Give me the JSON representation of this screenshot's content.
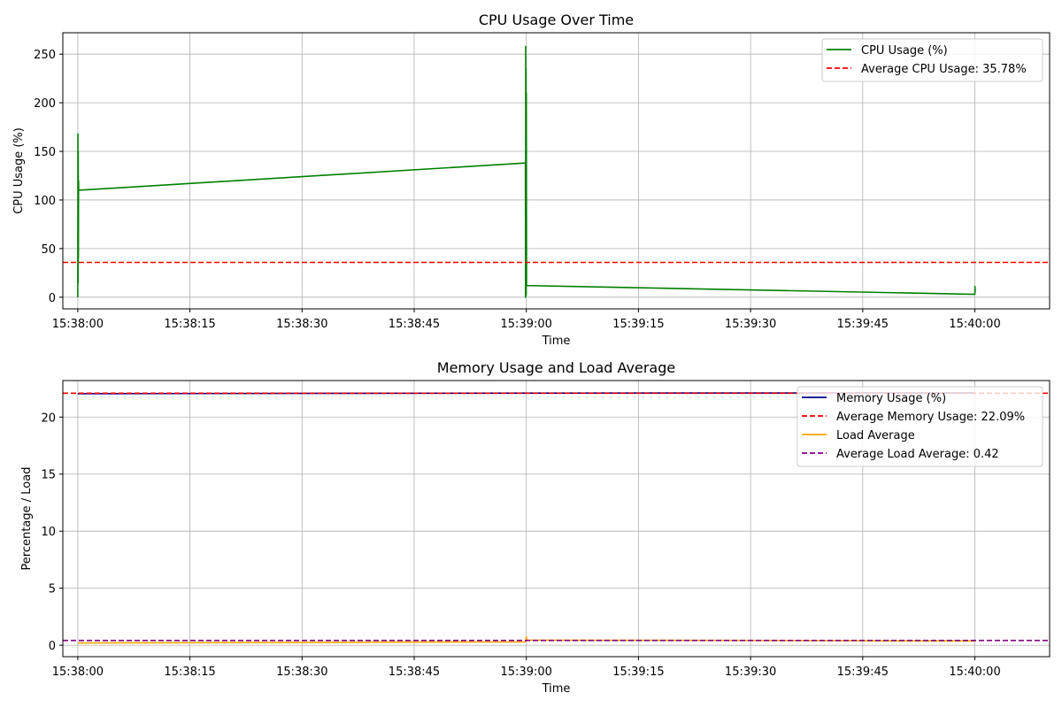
{
  "chart_data": [
    {
      "type": "line",
      "title": "CPU Usage Over Time",
      "xlabel": "Time",
      "ylabel": "CPU Usage (%)",
      "xlim": [
        "15:37:58",
        "15:40:10"
      ],
      "ylim": [
        -12,
        272
      ],
      "x_ticks": [
        "15:38:00",
        "15:38:15",
        "15:38:30",
        "15:38:45",
        "15:39:00",
        "15:39:15",
        "15:39:30",
        "15:39:45",
        "15:40:00"
      ],
      "y_ticks": [
        0,
        50,
        100,
        150,
        200,
        250
      ],
      "grid": true,
      "legend_position": "top-right",
      "series": [
        {
          "name": "CPU Usage (%)",
          "color": "#008000",
          "style": "solid",
          "x": [
            "15:38:00.00",
            "15:38:00.02",
            "15:38:00.04",
            "15:38:00.06",
            "15:38:00.08",
            "15:38:00.10",
            "15:38:00.12",
            "15:38:59.88",
            "15:38:59.90",
            "15:38:59.92",
            "15:38:59.94",
            "15:38:59.96",
            "15:38:59.98",
            "15:39:00.00",
            "15:39:00.03",
            "15:40:00.00",
            "15:40:00.02",
            "15:40:00.04"
          ],
          "y": [
            0,
            168,
            15,
            150,
            40,
            120,
            110,
            138,
            0,
            258,
            30,
            235,
            2,
            210,
            12,
            3,
            11,
            5
          ]
        },
        {
          "name": "Average CPU Usage: 35.78%",
          "color": "#ff0000",
          "style": "dashed",
          "value": 35.78
        }
      ]
    },
    {
      "type": "line",
      "title": "Memory Usage and Load Average",
      "xlabel": "Time",
      "ylabel": "Percentage / Load",
      "xlim": [
        "15:37:58",
        "15:40:10"
      ],
      "ylim": [
        -1.0,
        23.2
      ],
      "x_ticks": [
        "15:38:00",
        "15:38:15",
        "15:38:30",
        "15:38:45",
        "15:39:00",
        "15:39:15",
        "15:39:30",
        "15:39:45",
        "15:40:00"
      ],
      "y_ticks": [
        0,
        5,
        10,
        15,
        20
      ],
      "grid": true,
      "legend_position": "top-right",
      "series": [
        {
          "name": "Memory Usage (%)",
          "color": "#00008b",
          "style": "solid",
          "x": [
            "15:38:00",
            "15:39:00",
            "15:40:00"
          ],
          "y": [
            22.05,
            22.1,
            22.12
          ]
        },
        {
          "name": "Average Memory Usage: 22.09%",
          "color": "#ff0000",
          "style": "dashed",
          "value": 22.09
        },
        {
          "name": "Load Average",
          "color": "#ffa500",
          "style": "solid",
          "x": [
            "15:38:00",
            "15:38:59.9",
            "15:39:00",
            "15:39:00.1",
            "15:40:00"
          ],
          "y": [
            0.2,
            0.3,
            0.75,
            0.45,
            0.38
          ]
        },
        {
          "name": "Average Load Average: 0.42",
          "color": "#800080",
          "style": "dashed",
          "value": 0.42
        }
      ]
    }
  ]
}
